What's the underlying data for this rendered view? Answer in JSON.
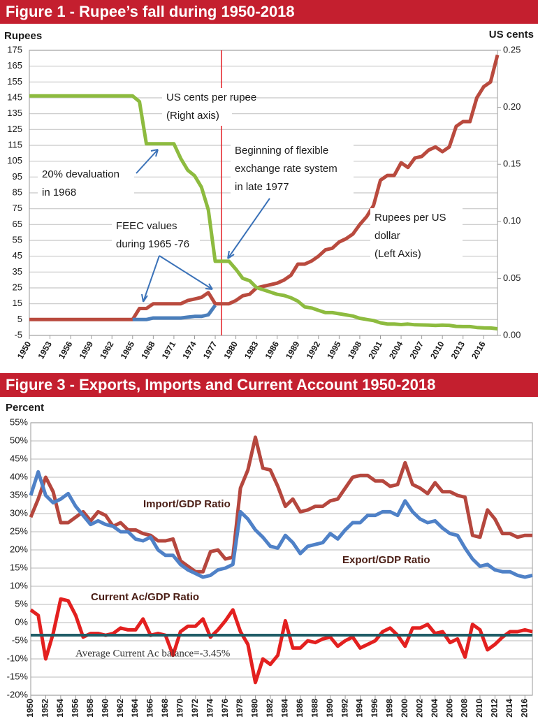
{
  "chart_data": [
    {
      "type": "line",
      "title": "Figure 1 - Rupee’s fall during 1950-2018",
      "ylabel": "Rupees",
      "y2label": "US cents",
      "x": [
        1950,
        1951,
        1952,
        1953,
        1954,
        1955,
        1956,
        1957,
        1958,
        1959,
        1960,
        1961,
        1962,
        1963,
        1964,
        1965,
        1966,
        1967,
        1968,
        1969,
        1970,
        1971,
        1972,
        1973,
        1974,
        1975,
        1976,
        1977,
        1978,
        1979,
        1980,
        1981,
        1982,
        1983,
        1984,
        1985,
        1986,
        1987,
        1988,
        1989,
        1990,
        1991,
        1992,
        1993,
        1994,
        1995,
        1996,
        1997,
        1998,
        1999,
        2000,
        2001,
        2002,
        2003,
        2004,
        2005,
        2006,
        2007,
        2008,
        2009,
        2010,
        2011,
        2012,
        2013,
        2014,
        2015,
        2016,
        2017,
        2018
      ],
      "xlim": [
        1950,
        2018
      ],
      "xticks": [
        1950,
        1953,
        1956,
        1959,
        1962,
        1965,
        1968,
        1971,
        1974,
        1977,
        1980,
        1983,
        1986,
        1989,
        1992,
        1995,
        1998,
        2001,
        2004,
        2007,
        2010,
        2013,
        2016
      ],
      "ylim": [
        -5,
        175
      ],
      "yticks": [
        -5,
        5,
        15,
        25,
        35,
        45,
        55,
        65,
        75,
        85,
        95,
        105,
        115,
        125,
        135,
        145,
        155,
        165,
        175
      ],
      "y2lim": [
        0,
        0.25
      ],
      "y2ticks": [
        {
          "value": 0,
          "label": "0.00"
        },
        0.05,
        {
          "value": 0.1,
          "label": "0.10"
        },
        0.15,
        {
          "value": 0.2,
          "label": "0.20"
        },
        0.25
      ],
      "grid": true,
      "series": [
        {
          "color": "#b94a3e",
          "values": [
            5,
            5,
            5,
            5,
            5,
            5,
            5,
            5,
            5,
            5,
            5,
            5,
            5,
            5,
            5,
            5,
            12,
            12,
            15,
            15,
            15,
            15,
            15,
            17,
            18,
            19,
            22,
            15,
            15,
            15,
            17,
            20,
            21,
            25,
            26,
            27,
            28,
            30,
            33,
            40,
            40,
            42,
            45,
            49,
            50,
            54,
            56,
            59,
            65,
            70,
            77,
            93,
            96,
            96,
            104,
            101,
            107,
            108,
            112,
            114,
            111,
            114,
            127,
            130,
            130,
            145,
            152,
            155,
            172
          ]
        },
        {
          "color": "#4a7ebb",
          "values": [
            null,
            null,
            null,
            null,
            null,
            null,
            null,
            null,
            null,
            null,
            null,
            null,
            null,
            null,
            null,
            5,
            5,
            5,
            6,
            6,
            6,
            6,
            6,
            6.5,
            7,
            7,
            8,
            14,
            null,
            null,
            null,
            null,
            null,
            null,
            null,
            null,
            null,
            null,
            null,
            null,
            null,
            null,
            null,
            null,
            null,
            null,
            null,
            null,
            null,
            null,
            null,
            null,
            null,
            null,
            null,
            null,
            null,
            null,
            null,
            null,
            null,
            null,
            null,
            null,
            null,
            null,
            null,
            null,
            null
          ]
        },
        {
          "color": "#8dbb3f",
          "axis": "y2",
          "values": [
            0.21,
            0.21,
            0.21,
            0.21,
            0.21,
            0.21,
            0.21,
            0.21,
            0.21,
            0.21,
            0.21,
            0.21,
            0.21,
            0.21,
            0.21,
            0.21,
            0.205,
            0.168,
            0.168,
            0.168,
            0.168,
            0.168,
            0.155,
            0.145,
            0.14,
            0.13,
            0.11,
            0.065,
            0.065,
            0.065,
            0.058,
            0.05,
            0.048,
            0.042,
            0.04,
            0.038,
            0.036,
            0.035,
            0.033,
            0.03,
            0.025,
            0.024,
            0.022,
            0.02,
            0.02,
            0.019,
            0.018,
            0.017,
            0.015,
            0.014,
            0.013,
            0.011,
            0.01,
            0.01,
            0.0095,
            0.0099,
            0.0093,
            0.0092,
            0.009,
            0.0087,
            0.009,
            0.0088,
            0.0079,
            0.0077,
            0.0077,
            0.0069,
            0.0066,
            0.0065,
            0.0058
          ]
        }
      ],
      "reference_line": {
        "x": 1977.9,
        "color": "#e31e24"
      },
      "annotations": [
        [
          "US cents per rupee",
          "(Right axis)"
        ],
        [
          "20% devaluation",
          "in 1968"
        ],
        [
          "Beginning of flexible",
          "exchange rate system",
          "in late 1977"
        ],
        [
          "FEEC values",
          "during 1965 -76"
        ],
        [
          "Rupees per US",
          "dollar",
          "(Left Axis)"
        ]
      ]
    },
    {
      "type": "line",
      "title": "Figure 3 - Exports, Imports and Current Account 1950-2018",
      "ylabel": "Percent",
      "x": [
        1950,
        1951,
        1952,
        1953,
        1954,
        1955,
        1956,
        1957,
        1958,
        1959,
        1960,
        1961,
        1962,
        1963,
        1964,
        1965,
        1966,
        1967,
        1968,
        1969,
        1970,
        1971,
        1972,
        1973,
        1974,
        1975,
        1976,
        1977,
        1978,
        1979,
        1980,
        1981,
        1982,
        1983,
        1984,
        1985,
        1986,
        1987,
        1988,
        1989,
        1990,
        1991,
        1992,
        1993,
        1994,
        1995,
        1996,
        1997,
        1998,
        1999,
        2000,
        2001,
        2002,
        2003,
        2004,
        2005,
        2006,
        2007,
        2008,
        2009,
        2010,
        2011,
        2012,
        2013,
        2014,
        2015,
        2016,
        2017
      ],
      "xlim": [
        1950,
        2017
      ],
      "xticks": [
        1950,
        1952,
        1954,
        1956,
        1958,
        1960,
        1962,
        1964,
        1966,
        1968,
        1970,
        1972,
        1974,
        1976,
        1978,
        1980,
        1982,
        1984,
        1986,
        1988,
        1990,
        1992,
        1994,
        1996,
        1998,
        2000,
        2002,
        2004,
        2006,
        2008,
        2010,
        2012,
        2014,
        2016
      ],
      "ylim": [
        -20,
        55
      ],
      "yticks": [
        {
          "value": -20,
          "label": "-20%"
        },
        {
          "value": -15,
          "label": "-15%"
        },
        {
          "value": -10,
          "label": "-10%"
        },
        {
          "value": -5,
          "label": "-5%"
        },
        {
          "value": 0,
          "label": "0%"
        },
        {
          "value": 5,
          "label": "5%"
        },
        {
          "value": 10,
          "label": "10%"
        },
        {
          "value": 15,
          "label": "15%"
        },
        {
          "value": 20,
          "label": "20%"
        },
        {
          "value": 25,
          "label": "25%"
        },
        {
          "value": 30,
          "label": "30%"
        },
        {
          "value": 35,
          "label": "35%"
        },
        {
          "value": 40,
          "label": "40%"
        },
        {
          "value": 45,
          "label": "45%"
        },
        {
          "value": 50,
          "label": "50%"
        },
        {
          "value": 55,
          "label": "55%"
        }
      ],
      "grid": true,
      "series": [
        {
          "name": "Import/GDP Ratio",
          "color": "#b5473e",
          "values": [
            29,
            34,
            40,
            36,
            27.5,
            27.5,
            29,
            30.5,
            28,
            30.5,
            29.5,
            26.5,
            27.5,
            25.5,
            25.5,
            24.5,
            24,
            22.5,
            22.5,
            23,
            17,
            15.5,
            14,
            14,
            19.5,
            20,
            17.5,
            18,
            37,
            42,
            51,
            42.5,
            42,
            37.5,
            32,
            34,
            30.5,
            31,
            32,
            32,
            33.5,
            34,
            37,
            40,
            40.5,
            40.5,
            39,
            39,
            37.5,
            38,
            44,
            38,
            37,
            35.5,
            38.5,
            36,
            36,
            35,
            34.5,
            24,
            23.5,
            31,
            28.5,
            24.5,
            24.5,
            23.5,
            24,
            24
          ]
        },
        {
          "name": "Export/GDP Ratio",
          "color": "#4f81c7",
          "values": [
            35,
            41.5,
            35,
            33,
            34,
            35.5,
            32,
            29.5,
            27,
            28,
            27,
            26.5,
            25,
            25,
            23,
            22.5,
            23.5,
            20,
            18.5,
            18.5,
            16,
            14.5,
            13.5,
            12.5,
            13,
            14.5,
            15,
            16,
            30.5,
            28.5,
            25.5,
            23.5,
            21,
            20.5,
            24,
            22,
            19,
            21,
            21.5,
            22,
            24.5,
            23,
            25.5,
            27.5,
            27.5,
            29.5,
            29.5,
            30.5,
            30.5,
            29.5,
            33.5,
            30.5,
            28.5,
            27.5,
            28,
            26,
            24.5,
            24,
            20.5,
            17.5,
            15.5,
            16,
            14.5,
            14,
            14,
            13,
            12.5,
            13
          ]
        },
        {
          "name": "Current Ac/GDP Ratio",
          "color": "#e3201f",
          "values": [
            3.5,
            2,
            -10,
            -3,
            6.5,
            6,
            2,
            -4,
            -3,
            -3,
            -3.5,
            -3,
            -1.5,
            -2,
            -2,
            1,
            -3.5,
            -3,
            -3.5,
            -9,
            -2.5,
            -1,
            -1,
            1,
            -4,
            -2,
            0.5,
            3.5,
            -2.5,
            -6,
            -16.5,
            -10,
            -11.5,
            -9,
            0.5,
            -7,
            -7,
            -5,
            -5.5,
            -4.5,
            -4,
            -6.5,
            -5,
            -4,
            -7,
            -6,
            -5,
            -2.5,
            -1.5,
            -3.5,
            -6.5,
            -1.5,
            -1.5,
            -0.5,
            -3,
            -2.5,
            -5.5,
            -4.5,
            -9.5,
            -0.5,
            -2,
            -7.5,
            -6,
            -4,
            -2.5,
            -2.5,
            -2,
            -2.5
          ]
        }
      ],
      "average": {
        "value": -3.45,
        "label": "Average Current Ac balance=-3.45%",
        "color": "#1f5c66"
      }
    }
  ]
}
